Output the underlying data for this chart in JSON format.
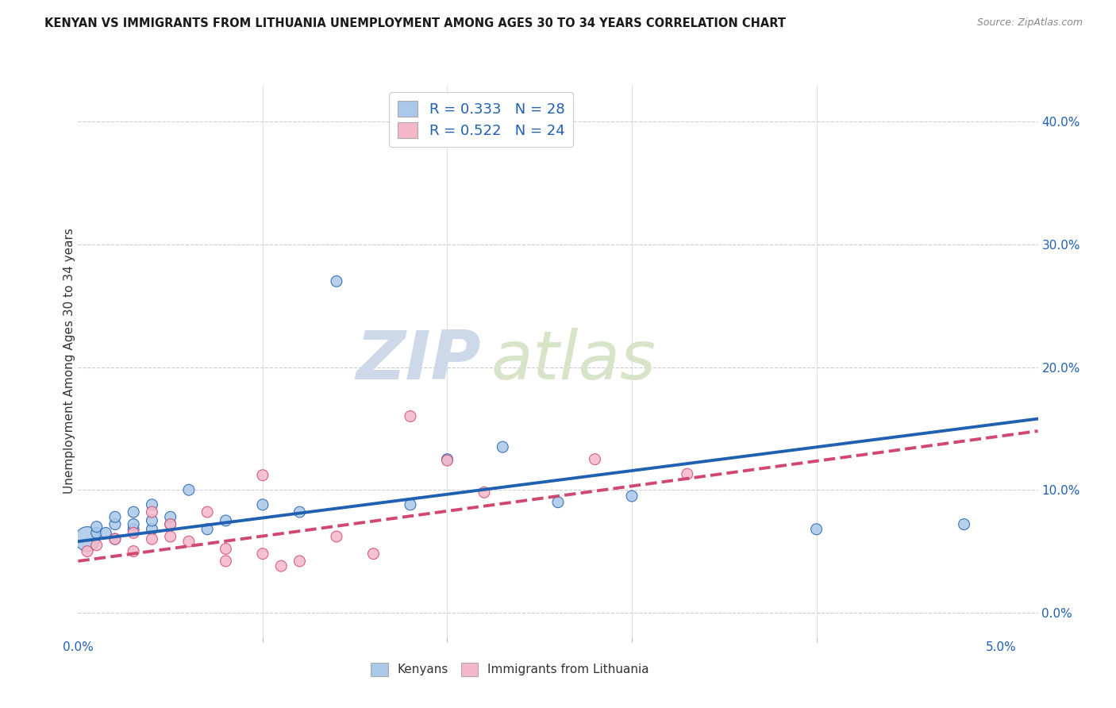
{
  "title": "KENYAN VS IMMIGRANTS FROM LITHUANIA UNEMPLOYMENT AMONG AGES 30 TO 34 YEARS CORRELATION CHART",
  "source": "Source: ZipAtlas.com",
  "ylabel": "Unemployment Among Ages 30 to 34 years",
  "ylabel_right_ticks": [
    "40.0%",
    "30.0%",
    "20.0%",
    "10.0%",
    "0.0%"
  ],
  "ylabel_right_vals": [
    0.4,
    0.3,
    0.2,
    0.1,
    0.0
  ],
  "x_min": 0.0,
  "x_max": 0.052,
  "y_min": -0.02,
  "y_max": 0.43,
  "kenyan_R": "0.333",
  "kenyan_N": "28",
  "lithuania_R": "0.522",
  "lithuania_N": "24",
  "kenyan_color": "#aac8e8",
  "kenyan_line_color": "#2060b0",
  "lithuania_color": "#f5b8ca",
  "lithuania_line_color": "#d04870",
  "watermark_zip": "ZIP",
  "watermark_atlas": "atlas",
  "kenyan_scatter_x": [
    0.0005,
    0.001,
    0.001,
    0.0015,
    0.002,
    0.002,
    0.002,
    0.003,
    0.003,
    0.003,
    0.004,
    0.004,
    0.004,
    0.005,
    0.005,
    0.006,
    0.007,
    0.008,
    0.01,
    0.012,
    0.014,
    0.018,
    0.02,
    0.023,
    0.026,
    0.03,
    0.04,
    0.048
  ],
  "kenyan_scatter_y": [
    0.06,
    0.065,
    0.07,
    0.065,
    0.06,
    0.072,
    0.078,
    0.068,
    0.072,
    0.082,
    0.068,
    0.075,
    0.088,
    0.072,
    0.078,
    0.1,
    0.068,
    0.075,
    0.088,
    0.082,
    0.27,
    0.088,
    0.125,
    0.135,
    0.09,
    0.095,
    0.068,
    0.072
  ],
  "kenyan_scatter_size": [
    500,
    100,
    100,
    100,
    100,
    100,
    100,
    100,
    100,
    100,
    100,
    100,
    100,
    100,
    100,
    100,
    100,
    100,
    100,
    100,
    100,
    100,
    100,
    100,
    100,
    100,
    100,
    100
  ],
  "lithuania_scatter_x": [
    0.0005,
    0.001,
    0.002,
    0.003,
    0.003,
    0.004,
    0.004,
    0.005,
    0.005,
    0.006,
    0.007,
    0.008,
    0.008,
    0.01,
    0.01,
    0.011,
    0.012,
    0.014,
    0.016,
    0.018,
    0.02,
    0.022,
    0.028,
    0.033
  ],
  "lithuania_scatter_y": [
    0.05,
    0.055,
    0.06,
    0.05,
    0.065,
    0.06,
    0.082,
    0.062,
    0.072,
    0.058,
    0.082,
    0.052,
    0.042,
    0.048,
    0.112,
    0.038,
    0.042,
    0.062,
    0.048,
    0.16,
    0.124,
    0.098,
    0.125,
    0.113
  ],
  "lithuania_scatter_size": [
    100,
    100,
    100,
    100,
    100,
    100,
    100,
    100,
    100,
    100,
    100,
    100,
    100,
    100,
    100,
    100,
    100,
    100,
    100,
    100,
    100,
    100,
    100,
    100
  ],
  "kenyan_trend_x": [
    0.0,
    0.052
  ],
  "kenyan_trend_y": [
    0.058,
    0.158
  ],
  "lithuania_trend_x": [
    0.0,
    0.052
  ],
  "lithuania_trend_y": [
    0.042,
    0.148
  ],
  "grid_color": "#cccccc",
  "background_color": "#ffffff",
  "x_label_ticks": [
    "0.0%",
    "5.0%"
  ],
  "x_label_vals": [
    0.0,
    0.05
  ]
}
